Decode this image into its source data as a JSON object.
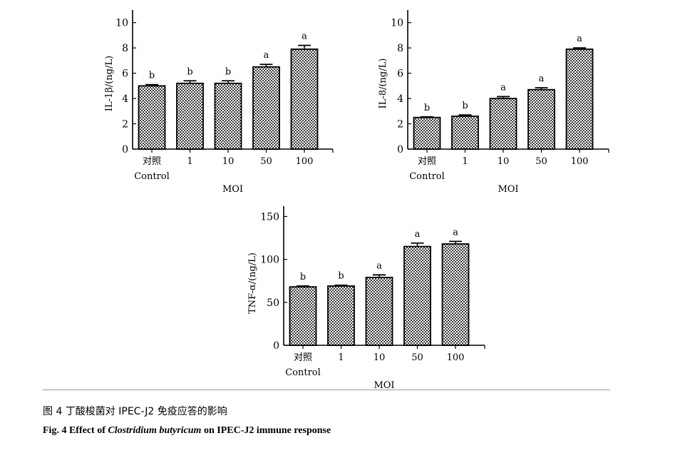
{
  "figure": {
    "caption_cn": "图 4 丁酸梭菌对 IPEC-J2 免疫应答的影响",
    "caption_en_prefix": "Fig. 4 Effect of ",
    "caption_en_italic": "Clostridium butyricum",
    "caption_en_suffix": " on IPEC-J2 immune response"
  },
  "chart_data": [
    {
      "type": "bar",
      "ylabel": "IL-1β/(ng/L)",
      "xlabel": "MOI",
      "categories": [
        "对照",
        "1",
        "10",
        "50",
        "100"
      ],
      "category_sublabels": [
        "Control",
        "",
        "",
        "",
        ""
      ],
      "values": [
        5.0,
        5.2,
        5.2,
        6.5,
        7.9
      ],
      "errors": [
        0.1,
        0.2,
        0.2,
        0.2,
        0.3
      ],
      "significance": [
        "b",
        "b",
        "b",
        "a",
        "a"
      ],
      "ylim": [
        0,
        11
      ],
      "yticks": [
        0,
        2,
        4,
        6,
        8,
        10
      ],
      "grid": false,
      "fill_pattern": "crosshatch"
    },
    {
      "type": "bar",
      "ylabel": "IL-8/(ng/L)",
      "xlabel": "MOI",
      "categories": [
        "对照",
        "1",
        "10",
        "50",
        "100"
      ],
      "category_sublabels": [
        "Control",
        "",
        "",
        "",
        ""
      ],
      "values": [
        2.5,
        2.6,
        4.0,
        4.7,
        7.9
      ],
      "errors": [
        0.05,
        0.1,
        0.15,
        0.15,
        0.1
      ],
      "significance": [
        "b",
        "b",
        "a",
        "a",
        "a"
      ],
      "ylim": [
        0,
        11
      ],
      "yticks": [
        0,
        2,
        4,
        6,
        8,
        10
      ],
      "grid": false,
      "fill_pattern": "crosshatch"
    },
    {
      "type": "bar",
      "ylabel": "TNF-α/(ng/L)",
      "xlabel": "MOI",
      "categories": [
        "对照",
        "1",
        "10",
        "50",
        "100"
      ],
      "category_sublabels": [
        "Control",
        "",
        "",
        "",
        ""
      ],
      "values": [
        68,
        69,
        79,
        115,
        118
      ],
      "errors": [
        1,
        1,
        3,
        4,
        3
      ],
      "significance": [
        "b",
        "b",
        "a",
        "a",
        "a"
      ],
      "ylim": [
        0,
        162
      ],
      "yticks": [
        0,
        50,
        100,
        150
      ],
      "grid": false,
      "fill_pattern": "crosshatch"
    }
  ]
}
